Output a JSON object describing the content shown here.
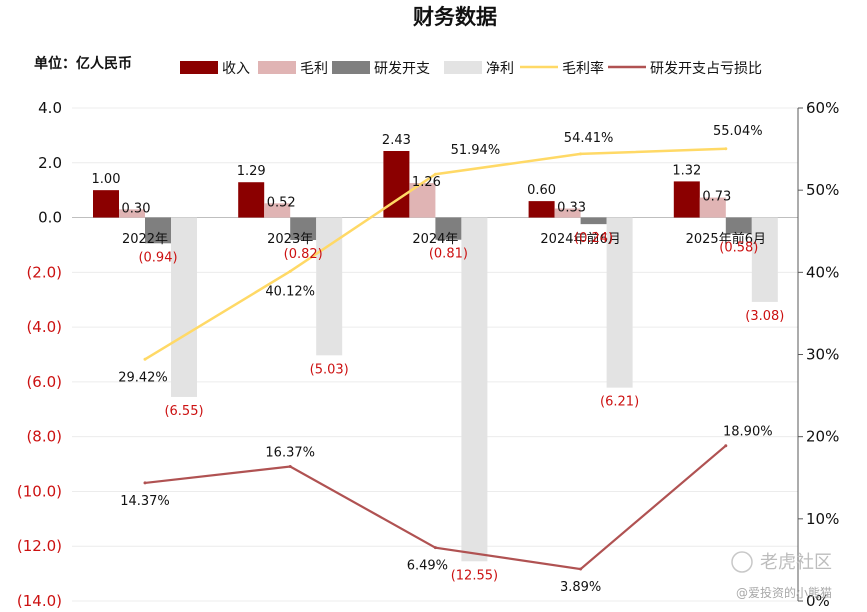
{
  "chart_data": {
    "type": "bar",
    "title": "财务数据",
    "unit_label": "单位：亿人民币",
    "categories": [
      "2022年",
      "2023年",
      "2024年",
      "2024年前6月",
      "2025年前6月"
    ],
    "series": [
      {
        "name": "收入",
        "type": "bar",
        "axis": "left",
        "color": "#8b0000",
        "values": [
          1.0,
          1.29,
          2.43,
          0.6,
          1.32
        ],
        "labels": [
          "1.00",
          "1.29",
          "2.43",
          "0.60",
          "1.32"
        ]
      },
      {
        "name": "毛利",
        "type": "bar",
        "axis": "left",
        "color": "#e0b4b4",
        "values": [
          0.3,
          0.52,
          1.26,
          0.33,
          0.73
        ],
        "labels": [
          "0.30",
          "0.52",
          "1.26",
          "0.33",
          "0.73"
        ]
      },
      {
        "name": "研发开支",
        "type": "bar",
        "axis": "left",
        "color": "#7f7f7f",
        "values": [
          -0.94,
          -0.82,
          -0.81,
          -0.24,
          -0.58
        ],
        "labels": [
          "(0.94)",
          "(0.82)",
          "(0.81)",
          "(0.24)",
          "(0.58)"
        ]
      },
      {
        "name": "净利",
        "type": "bar",
        "axis": "left",
        "color": "#e3e3e3",
        "values": [
          -6.55,
          -5.03,
          -12.55,
          -6.21,
          -3.08
        ],
        "labels": [
          "(6.55)",
          "(5.03)",
          "(12.55)",
          "(6.21)",
          "(3.08)"
        ]
      },
      {
        "name": "毛利率",
        "type": "line",
        "axis": "right",
        "color": "#ffd966",
        "values": [
          29.42,
          40.12,
          51.94,
          54.41,
          55.04
        ],
        "labels": [
          "29.42%",
          "40.12%",
          "51.94%",
          "54.41%",
          "55.04%"
        ]
      },
      {
        "name": "研发开支占亏损比",
        "type": "line",
        "axis": "right",
        "color": "#b05252",
        "values": [
          14.37,
          16.37,
          6.49,
          3.89,
          18.9
        ],
        "labels": [
          "14.37%",
          "16.37%",
          "6.49%",
          "3.89%",
          "18.90%"
        ]
      }
    ],
    "y_left": {
      "min": -14,
      "max": 4,
      "step": 2,
      "ticks": [
        "4.0",
        "2.0",
        "0.0",
        "(2.0)",
        "(4.0)",
        "(6.0)",
        "(8.0)",
        "(10.0)",
        "(12.0)",
        "(14.0)"
      ]
    },
    "y_right": {
      "min": 0,
      "max": 60,
      "step": 10,
      "ticks": [
        "60%",
        "50%",
        "40%",
        "30%",
        "20%",
        "10%",
        "0%"
      ]
    },
    "legend_position": "top",
    "grid": true
  },
  "watermark": {
    "brand": "老虎社区",
    "author": "@爱投资的小熊猫"
  }
}
